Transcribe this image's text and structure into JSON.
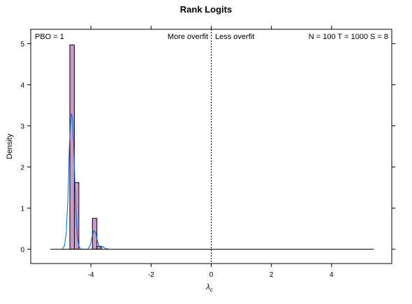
{
  "chart_data": {
    "type": "bar",
    "title": "Rank Logits",
    "ylabel": "Density",
    "xlabel_main": "λ",
    "xlabel_sub": "c",
    "xlim": [
      -6.0,
      6.0
    ],
    "ylim": [
      -0.35,
      5.35
    ],
    "x_ticks": [
      -4,
      -2,
      0,
      2,
      4
    ],
    "y_ticks": [
      0,
      1,
      2,
      3,
      4,
      5
    ],
    "annotations": {
      "pbo": "PBO = 1",
      "more": "More overfit",
      "less": "Less overfit",
      "stats": "N = 100  T = 1000  S = 8"
    },
    "bins": [
      {
        "x0": -4.7,
        "x1": -4.55,
        "value": 4.97
      },
      {
        "x0": -4.55,
        "x1": -4.4,
        "value": 1.62
      },
      {
        "x0": -3.95,
        "x1": -3.8,
        "value": 0.75
      },
      {
        "x0": -3.8,
        "x1": -3.65,
        "value": 0.07
      }
    ],
    "density": [
      [
        -4.95,
        0.0
      ],
      [
        -4.88,
        0.08
      ],
      [
        -4.82,
        0.38
      ],
      [
        -4.76,
        1.3
      ],
      [
        -4.72,
        2.4
      ],
      [
        -4.68,
        3.05
      ],
      [
        -4.645,
        3.3
      ],
      [
        -4.61,
        3.15
      ],
      [
        -4.57,
        2.5
      ],
      [
        -4.53,
        1.6
      ],
      [
        -4.49,
        0.8
      ],
      [
        -4.45,
        0.3
      ],
      [
        -4.4,
        0.08
      ],
      [
        -4.34,
        0.0
      ],
      [
        -4.1,
        0.0
      ],
      [
        -4.02,
        0.1
      ],
      [
        -3.96,
        0.3
      ],
      [
        -3.9,
        0.45
      ],
      [
        -3.84,
        0.4
      ],
      [
        -3.78,
        0.2
      ],
      [
        -3.72,
        0.06
      ],
      [
        -3.66,
        0.03
      ],
      [
        -3.6,
        0.06
      ],
      [
        -3.55,
        0.03
      ],
      [
        -3.48,
        0.01
      ],
      [
        -3.4,
        0.0
      ]
    ],
    "baseline_x": [
      -5.35,
      5.4
    ],
    "ref_line_x": 0,
    "colors": {
      "bar_fill": "#cc99cc",
      "density_line": "#0066cc",
      "axis": "#000000"
    }
  }
}
